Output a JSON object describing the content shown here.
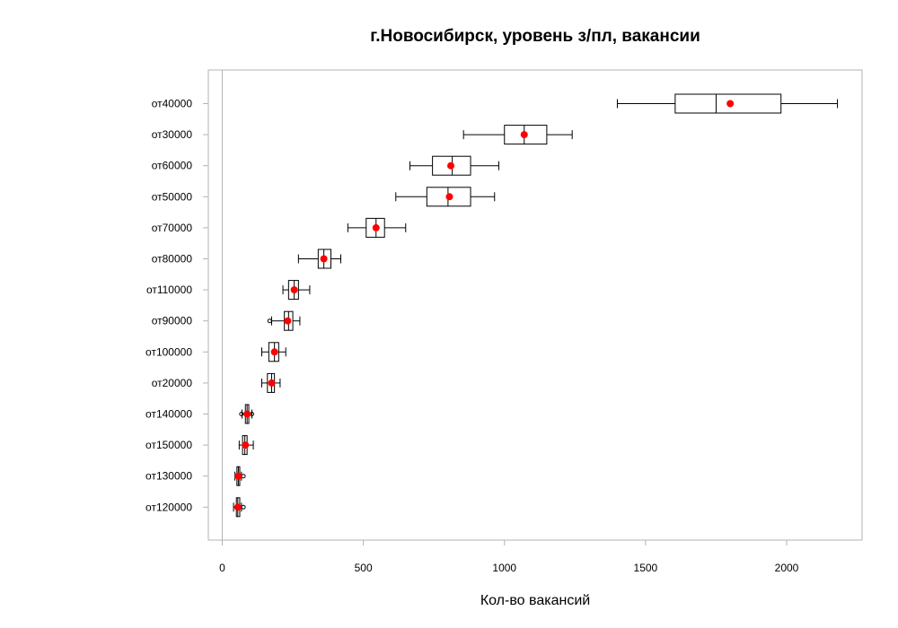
{
  "chart_data": {
    "type": "boxplot",
    "orientation": "horizontal",
    "title": "г.Новосибирск, уровень з/пл, вакансии",
    "xlabel": "Кол-во вакансий",
    "ylabel": "",
    "xlim": [
      -50,
      2270
    ],
    "xticks": [
      0,
      500,
      1000,
      1500,
      2000
    ],
    "grid": false,
    "mean_color": "#ff0000",
    "categories": [
      "от40000",
      "от30000",
      "от60000",
      "от50000",
      "от70000",
      "от80000",
      "от110000",
      "от90000",
      "от100000",
      "от20000",
      "от140000",
      "от150000",
      "от130000",
      "от120000"
    ],
    "boxes": [
      {
        "label": "от40000",
        "min": 1400,
        "q1": 1605,
        "median": 1750,
        "q3": 1980,
        "max": 2180,
        "mean": 1800,
        "outliers": []
      },
      {
        "label": "от30000",
        "min": 855,
        "q1": 1000,
        "median": 1070,
        "q3": 1150,
        "max": 1240,
        "mean": 1070,
        "outliers": []
      },
      {
        "label": "от60000",
        "min": 665,
        "q1": 745,
        "median": 815,
        "q3": 880,
        "max": 980,
        "mean": 810,
        "outliers": []
      },
      {
        "label": "от50000",
        "min": 615,
        "q1": 725,
        "median": 800,
        "q3": 880,
        "max": 965,
        "mean": 805,
        "outliers": []
      },
      {
        "label": "от70000",
        "min": 445,
        "q1": 510,
        "median": 545,
        "q3": 575,
        "max": 650,
        "mean": 545,
        "outliers": []
      },
      {
        "label": "от80000",
        "min": 270,
        "q1": 340,
        "median": 360,
        "q3": 385,
        "max": 420,
        "mean": 360,
        "outliers": []
      },
      {
        "label": "от110000",
        "min": 215,
        "q1": 235,
        "median": 255,
        "q3": 270,
        "max": 310,
        "mean": 255,
        "outliers": []
      },
      {
        "label": "от90000",
        "min": 175,
        "q1": 220,
        "median": 235,
        "q3": 250,
        "max": 275,
        "mean": 232,
        "outliers": [
          168
        ]
      },
      {
        "label": "от100000",
        "min": 140,
        "q1": 165,
        "median": 185,
        "q3": 200,
        "max": 225,
        "mean": 185,
        "outliers": []
      },
      {
        "label": "от20000",
        "min": 140,
        "q1": 160,
        "median": 175,
        "q3": 185,
        "max": 205,
        "mean": 175,
        "outliers": []
      },
      {
        "label": "от140000",
        "min": 70,
        "q1": 82,
        "median": 88,
        "q3": 94,
        "max": 105,
        "mean": 88,
        "outliers": [
          68,
          105
        ]
      },
      {
        "label": "от150000",
        "min": 60,
        "q1": 72,
        "median": 80,
        "q3": 88,
        "max": 110,
        "mean": 82,
        "outliers": []
      },
      {
        "label": "от130000",
        "min": 45,
        "q1": 52,
        "median": 57,
        "q3": 62,
        "max": 68,
        "mean": 57,
        "outliers": [
          75
        ]
      },
      {
        "label": "от120000",
        "min": 40,
        "q1": 50,
        "median": 55,
        "q3": 62,
        "max": 68,
        "mean": 55,
        "outliers": [
          75
        ]
      }
    ]
  }
}
